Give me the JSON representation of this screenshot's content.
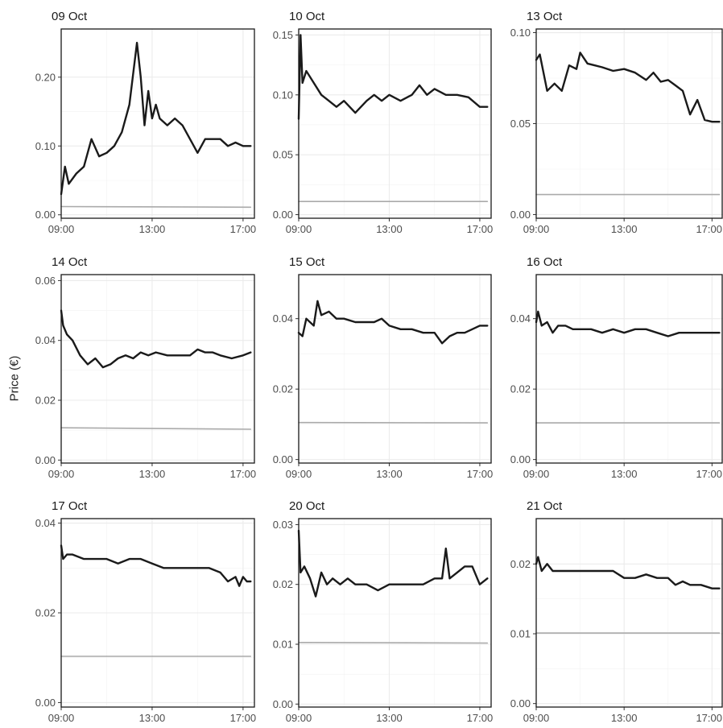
{
  "ylabel": "Price (€)",
  "chart_data": [
    {
      "type": "line",
      "title": "09 Oct",
      "ylim": [
        -0.005,
        0.27
      ],
      "yticks": [
        0.0,
        0.1,
        0.2
      ],
      "ytick_labels": [
        "0.00",
        "0.10",
        "0.20"
      ],
      "xticks": [
        "09:00",
        "13:00",
        "17:00"
      ],
      "series": [
        {
          "color": "#1a1a1a",
          "x": [
            "09:00",
            "09:10",
            "09:20",
            "09:40",
            "10:00",
            "10:20",
            "10:40",
            "11:00",
            "11:20",
            "11:40",
            "12:00",
            "12:20",
            "12:30",
            "12:40",
            "12:50",
            "13:00",
            "13:10",
            "13:20",
            "13:40",
            "14:00",
            "14:20",
            "14:40",
            "15:00",
            "15:20",
            "15:40",
            "16:00",
            "16:20",
            "16:40",
            "17:00",
            "17:20"
          ],
          "y": [
            0.03,
            0.07,
            0.045,
            0.06,
            0.07,
            0.11,
            0.085,
            0.09,
            0.1,
            0.12,
            0.16,
            0.25,
            0.2,
            0.13,
            0.18,
            0.14,
            0.16,
            0.14,
            0.13,
            0.14,
            0.13,
            0.11,
            0.09,
            0.11,
            0.11,
            0.11,
            0.1,
            0.105,
            0.1,
            0.1
          ]
        },
        {
          "color": "#aaaaaa",
          "x": [
            "09:00",
            "17:20"
          ],
          "y": [
            0.012,
            0.011
          ]
        }
      ]
    },
    {
      "type": "line",
      "title": "10 Oct",
      "ylim": [
        -0.003,
        0.155
      ],
      "yticks": [
        0.0,
        0.05,
        0.1,
        0.15
      ],
      "ytick_labels": [
        "0.00",
        "0.05",
        "0.10",
        "0.15"
      ],
      "xticks": [
        "09:00",
        "13:00",
        "17:00"
      ],
      "series": [
        {
          "color": "#1a1a1a",
          "x": [
            "09:00",
            "09:05",
            "09:10",
            "09:20",
            "09:40",
            "10:00",
            "10:20",
            "10:40",
            "11:00",
            "11:30",
            "12:00",
            "12:20",
            "12:40",
            "13:00",
            "13:30",
            "14:00",
            "14:20",
            "14:40",
            "15:00",
            "15:30",
            "16:00",
            "16:30",
            "17:00",
            "17:20"
          ],
          "y": [
            0.08,
            0.15,
            0.11,
            0.12,
            0.11,
            0.1,
            0.095,
            0.09,
            0.095,
            0.085,
            0.095,
            0.1,
            0.095,
            0.1,
            0.095,
            0.1,
            0.108,
            0.1,
            0.105,
            0.1,
            0.1,
            0.098,
            0.09,
            0.09
          ]
        },
        {
          "color": "#aaaaaa",
          "x": [
            "09:00",
            "17:20"
          ],
          "y": [
            0.011,
            0.011
          ]
        }
      ]
    },
    {
      "type": "line",
      "title": "13 Oct",
      "ylim": [
        -0.002,
        0.102
      ],
      "yticks": [
        0.0,
        0.05,
        0.1
      ],
      "ytick_labels": [
        "0.00",
        "0.05",
        "0.10"
      ],
      "xticks": [
        "09:00",
        "13:00",
        "17:00"
      ],
      "series": [
        {
          "color": "#1a1a1a",
          "x": [
            "09:00",
            "09:10",
            "09:30",
            "09:50",
            "10:10",
            "10:30",
            "10:50",
            "11:00",
            "11:20",
            "11:40",
            "12:00",
            "12:30",
            "13:00",
            "13:30",
            "14:00",
            "14:20",
            "14:40",
            "15:00",
            "15:20",
            "15:40",
            "16:00",
            "16:20",
            "16:40",
            "17:00",
            "17:20"
          ],
          "y": [
            0.085,
            0.088,
            0.068,
            0.072,
            0.068,
            0.082,
            0.08,
            0.089,
            0.083,
            0.082,
            0.081,
            0.079,
            0.08,
            0.078,
            0.074,
            0.078,
            0.073,
            0.074,
            0.071,
            0.068,
            0.055,
            0.063,
            0.052,
            0.051,
            0.051
          ]
        },
        {
          "color": "#aaaaaa",
          "x": [
            "09:00",
            "17:20"
          ],
          "y": [
            0.011,
            0.011
          ]
        }
      ]
    },
    {
      "type": "line",
      "title": "14 Oct",
      "ylim": [
        -0.001,
        0.062
      ],
      "yticks": [
        0.0,
        0.02,
        0.04,
        0.06
      ],
      "ytick_labels": [
        "0.00",
        "0.02",
        "0.04",
        "0.06"
      ],
      "xticks": [
        "09:00",
        "13:00",
        "17:00"
      ],
      "series": [
        {
          "color": "#1a1a1a",
          "x": [
            "09:00",
            "09:05",
            "09:15",
            "09:30",
            "09:50",
            "10:10",
            "10:30",
            "10:50",
            "11:10",
            "11:30",
            "11:50",
            "12:10",
            "12:30",
            "12:50",
            "13:10",
            "13:40",
            "14:10",
            "14:40",
            "15:00",
            "15:20",
            "15:40",
            "16:00",
            "16:30",
            "17:00",
            "17:20"
          ],
          "y": [
            0.05,
            0.045,
            0.042,
            0.04,
            0.035,
            0.032,
            0.034,
            0.031,
            0.032,
            0.034,
            0.035,
            0.034,
            0.036,
            0.035,
            0.036,
            0.035,
            0.035,
            0.035,
            0.037,
            0.036,
            0.036,
            0.035,
            0.034,
            0.035,
            0.036
          ]
        },
        {
          "color": "#aaaaaa",
          "x": [
            "09:00",
            "17:20"
          ],
          "y": [
            0.0108,
            0.0103
          ]
        }
      ]
    },
    {
      "type": "line",
      "title": "15 Oct",
      "ylim": [
        -0.001,
        0.0525
      ],
      "yticks": [
        0.0,
        0.02,
        0.04
      ],
      "ytick_labels": [
        "0.00",
        "0.02",
        "0.04"
      ],
      "xticks": [
        "09:00",
        "13:00",
        "17:00"
      ],
      "series": [
        {
          "color": "#1a1a1a",
          "x": [
            "09:00",
            "09:10",
            "09:20",
            "09:40",
            "09:50",
            "10:00",
            "10:20",
            "10:40",
            "11:00",
            "11:30",
            "12:00",
            "12:20",
            "12:40",
            "13:00",
            "13:30",
            "14:00",
            "14:30",
            "15:00",
            "15:20",
            "15:40",
            "16:00",
            "16:20",
            "16:40",
            "17:00",
            "17:20"
          ],
          "y": [
            0.036,
            0.035,
            0.04,
            0.038,
            0.045,
            0.041,
            0.042,
            0.04,
            0.04,
            0.039,
            0.039,
            0.039,
            0.04,
            0.038,
            0.037,
            0.037,
            0.036,
            0.036,
            0.033,
            0.035,
            0.036,
            0.036,
            0.037,
            0.038,
            0.038
          ]
        },
        {
          "color": "#aaaaaa",
          "x": [
            "09:00",
            "17:20"
          ],
          "y": [
            0.0105,
            0.0104
          ]
        }
      ]
    },
    {
      "type": "line",
      "title": "16 Oct",
      "ylim": [
        -0.001,
        0.0525
      ],
      "yticks": [
        0.0,
        0.02,
        0.04
      ],
      "ytick_labels": [
        "0.00",
        "0.02",
        "0.04"
      ],
      "xticks": [
        "09:00",
        "13:00",
        "17:00"
      ],
      "series": [
        {
          "color": "#1a1a1a",
          "x": [
            "09:00",
            "09:05",
            "09:15",
            "09:30",
            "09:45",
            "10:00",
            "10:20",
            "10:40",
            "11:00",
            "11:30",
            "12:00",
            "12:30",
            "13:00",
            "13:30",
            "14:00",
            "14:30",
            "15:00",
            "15:30",
            "16:00",
            "16:30",
            "17:00",
            "17:20"
          ],
          "y": [
            0.039,
            0.042,
            0.038,
            0.039,
            0.036,
            0.038,
            0.038,
            0.037,
            0.037,
            0.037,
            0.036,
            0.037,
            0.036,
            0.037,
            0.037,
            0.036,
            0.035,
            0.036,
            0.036,
            0.036,
            0.036,
            0.036
          ]
        },
        {
          "color": "#aaaaaa",
          "x": [
            "09:00",
            "17:20"
          ],
          "y": [
            0.0104,
            0.0104
          ]
        }
      ]
    },
    {
      "type": "line",
      "title": "17 Oct",
      "ylim": [
        -0.001,
        0.041
      ],
      "yticks": [
        0.0,
        0.02,
        0.04
      ],
      "ytick_labels": [
        "0.00",
        "0.02",
        "0.04"
      ],
      "xticks": [
        "09:00",
        "13:00",
        "17:00"
      ],
      "series": [
        {
          "color": "#1a1a1a",
          "x": [
            "09:00",
            "09:05",
            "09:15",
            "09:30",
            "10:00",
            "10:30",
            "11:00",
            "11:30",
            "12:00",
            "12:30",
            "13:00",
            "13:30",
            "14:00",
            "14:30",
            "15:00",
            "15:30",
            "16:00",
            "16:20",
            "16:40",
            "16:50",
            "17:00",
            "17:10",
            "17:20"
          ],
          "y": [
            0.035,
            0.032,
            0.033,
            0.033,
            0.032,
            0.032,
            0.032,
            0.031,
            0.032,
            0.032,
            0.031,
            0.03,
            0.03,
            0.03,
            0.03,
            0.03,
            0.029,
            0.027,
            0.028,
            0.026,
            0.028,
            0.027,
            0.027
          ]
        },
        {
          "color": "#aaaaaa",
          "x": [
            "09:00",
            "17:20"
          ],
          "y": [
            0.0103,
            0.0103
          ]
        }
      ]
    },
    {
      "type": "line",
      "title": "20 Oct",
      "ylim": [
        -0.0005,
        0.031
      ],
      "yticks": [
        0.0,
        0.01,
        0.02,
        0.03
      ],
      "ytick_labels": [
        "0.00",
        "0.01",
        "0.02",
        "0.03"
      ],
      "xticks": [
        "09:00",
        "13:00",
        "17:00"
      ],
      "series": [
        {
          "color": "#1a1a1a",
          "x": [
            "09:00",
            "09:05",
            "09:15",
            "09:30",
            "09:45",
            "10:00",
            "10:15",
            "10:30",
            "10:50",
            "11:10",
            "11:30",
            "12:00",
            "12:30",
            "13:00",
            "13:30",
            "14:00",
            "14:30",
            "15:00",
            "15:20",
            "15:30",
            "15:40",
            "16:00",
            "16:20",
            "16:40",
            "17:00",
            "17:20"
          ],
          "y": [
            0.029,
            0.022,
            0.023,
            0.021,
            0.018,
            0.022,
            0.02,
            0.021,
            0.02,
            0.021,
            0.02,
            0.02,
            0.019,
            0.02,
            0.02,
            0.02,
            0.02,
            0.021,
            0.021,
            0.026,
            0.021,
            0.022,
            0.023,
            0.023,
            0.02,
            0.021
          ]
        },
        {
          "color": "#aaaaaa",
          "x": [
            "09:00",
            "17:20"
          ],
          "y": [
            0.0103,
            0.0102
          ]
        }
      ]
    },
    {
      "type": "line",
      "title": "21 Oct",
      "ylim": [
        -0.0005,
        0.0265
      ],
      "yticks": [
        0.0,
        0.01,
        0.02
      ],
      "ytick_labels": [
        "0.00",
        "0.01",
        "0.02"
      ],
      "xticks": [
        "09:00",
        "13:00",
        "17:00"
      ],
      "series": [
        {
          "color": "#1a1a1a",
          "x": [
            "09:00",
            "09:05",
            "09:15",
            "09:30",
            "09:45",
            "10:00",
            "10:20",
            "10:40",
            "11:00",
            "11:30",
            "12:00",
            "12:30",
            "13:00",
            "13:30",
            "14:00",
            "14:30",
            "15:00",
            "15:20",
            "15:40",
            "16:00",
            "16:30",
            "17:00",
            "17:20"
          ],
          "y": [
            0.02,
            0.021,
            0.019,
            0.02,
            0.019,
            0.019,
            0.019,
            0.019,
            0.019,
            0.019,
            0.019,
            0.019,
            0.018,
            0.018,
            0.0185,
            0.018,
            0.018,
            0.017,
            0.0175,
            0.017,
            0.017,
            0.0165,
            0.0165
          ]
        },
        {
          "color": "#aaaaaa",
          "x": [
            "09:00",
            "17:20"
          ],
          "y": [
            0.0101,
            0.0101
          ]
        }
      ]
    }
  ]
}
